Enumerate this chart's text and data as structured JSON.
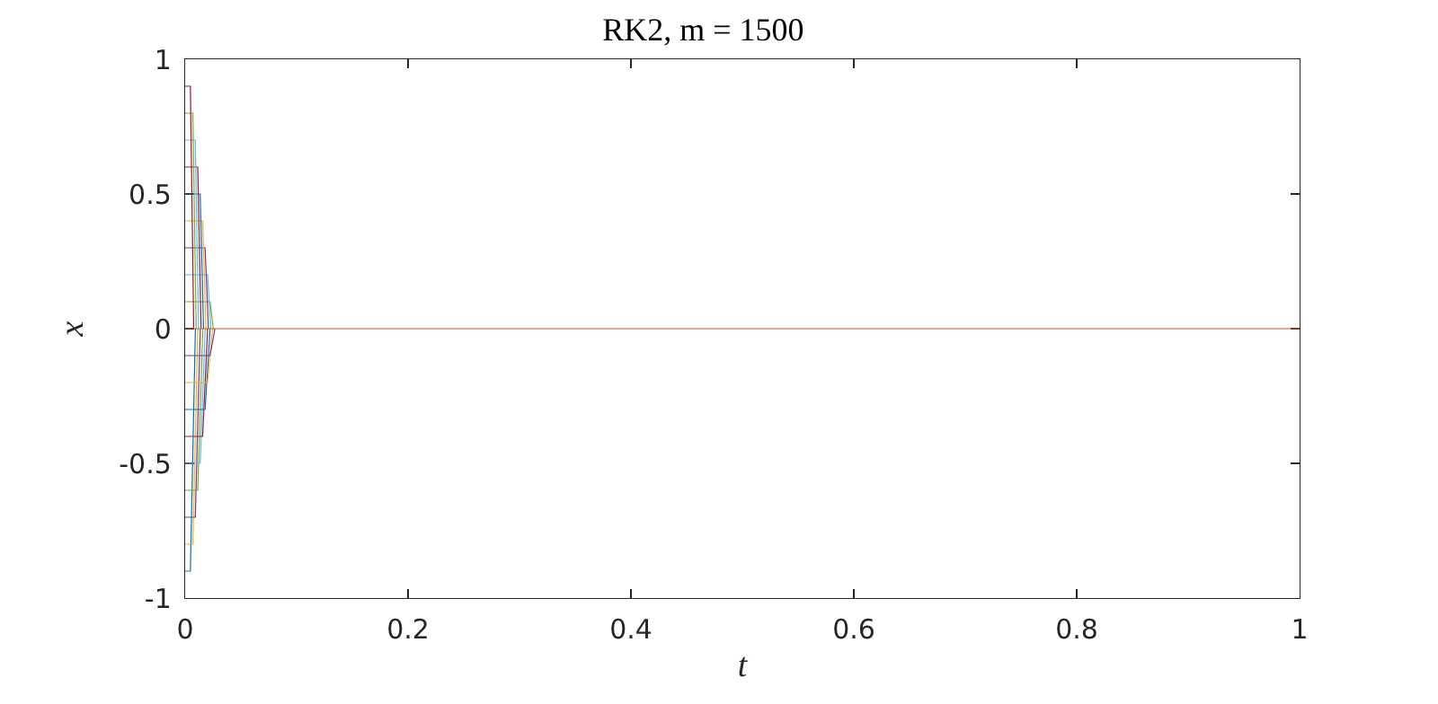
{
  "chart_data": {
    "type": "line",
    "title": "RK2, m = 1500",
    "xlabel": "t",
    "ylabel": "x",
    "xlim": [
      0,
      1
    ],
    "xticks": [
      0,
      0.2,
      0.4,
      0.6,
      0.8,
      1
    ],
    "ylim": [
      -1,
      1
    ],
    "yticks": [
      -1,
      -0.5,
      0,
      0.5,
      1
    ],
    "grid": false,
    "marker": "none",
    "line_style": "solid",
    "series": [
      {
        "color": "#0072bd",
        "x": [
          0,
          0.0047,
          0.0092
        ],
        "values": [
          -0.9,
          -0.9,
          0
        ]
      },
      {
        "color": "#edb120",
        "x": [
          0,
          0.0069,
          0.0114
        ],
        "values": [
          -0.8,
          -0.8,
          0
        ]
      },
      {
        "color": "#7e2f8e",
        "x": [
          0,
          0.0091,
          0.0136
        ],
        "values": [
          -0.7,
          -0.7,
          0
        ]
      },
      {
        "color": "#77ac30",
        "x": [
          0,
          0.0113,
          0.0158
        ],
        "values": [
          -0.6,
          -0.6,
          0
        ]
      },
      {
        "color": "#4dbeee",
        "x": [
          0,
          0.0135,
          0.018
        ],
        "values": [
          -0.5,
          -0.5,
          0
        ]
      },
      {
        "color": "#a2142f",
        "x": [
          0,
          0.0157,
          0.0202
        ],
        "values": [
          -0.4,
          -0.4,
          0
        ]
      },
      {
        "color": "#0072bd",
        "x": [
          0,
          0.0179,
          0.0224
        ],
        "values": [
          -0.3,
          -0.3,
          0
        ]
      },
      {
        "color": "#edb120",
        "x": [
          0,
          0.0201,
          0.0246
        ],
        "values": [
          -0.2,
          -0.2,
          0
        ]
      },
      {
        "color": "#7e2f8e",
        "x": [
          0,
          0.0223,
          0.0268
        ],
        "values": [
          -0.1,
          -0.1,
          0
        ]
      },
      {
        "color": "#77ac30",
        "x": [
          0,
          0.0223,
          0.0253
        ],
        "values": [
          0.1,
          0.1,
          0
        ]
      },
      {
        "color": "#4dbeee",
        "x": [
          0,
          0.0201,
          0.0231
        ],
        "values": [
          0.2,
          0.2,
          0
        ]
      },
      {
        "color": "#7e2f8e",
        "x": [
          0,
          0.0179,
          0.0209
        ],
        "values": [
          0.3,
          0.3,
          0
        ]
      },
      {
        "color": "#edb120",
        "x": [
          0,
          0.0157,
          0.0187
        ],
        "values": [
          0.4,
          0.4,
          0
        ]
      },
      {
        "color": "#0072bd",
        "x": [
          0,
          0.0135,
          0.0165
        ],
        "values": [
          0.5,
          0.5,
          0
        ]
      },
      {
        "color": "#a2142f",
        "x": [
          0,
          0.0113,
          0.0143
        ],
        "values": [
          0.6,
          0.6,
          0
        ]
      },
      {
        "color": "#4dbeee",
        "x": [
          0,
          0.0091,
          0.0121
        ],
        "values": [
          0.7,
          0.7,
          0
        ]
      },
      {
        "color": "#77ac30",
        "x": [
          0,
          0.0069,
          0.0099
        ],
        "values": [
          0.8,
          0.8,
          0
        ]
      },
      {
        "color": "#a2142f",
        "x": [
          0,
          0.0047,
          0.0077
        ],
        "values": [
          0.9,
          0.9,
          0
        ]
      },
      {
        "color": "#d95319",
        "x": [
          0,
          1
        ],
        "values": [
          0,
          0
        ]
      }
    ]
  }
}
